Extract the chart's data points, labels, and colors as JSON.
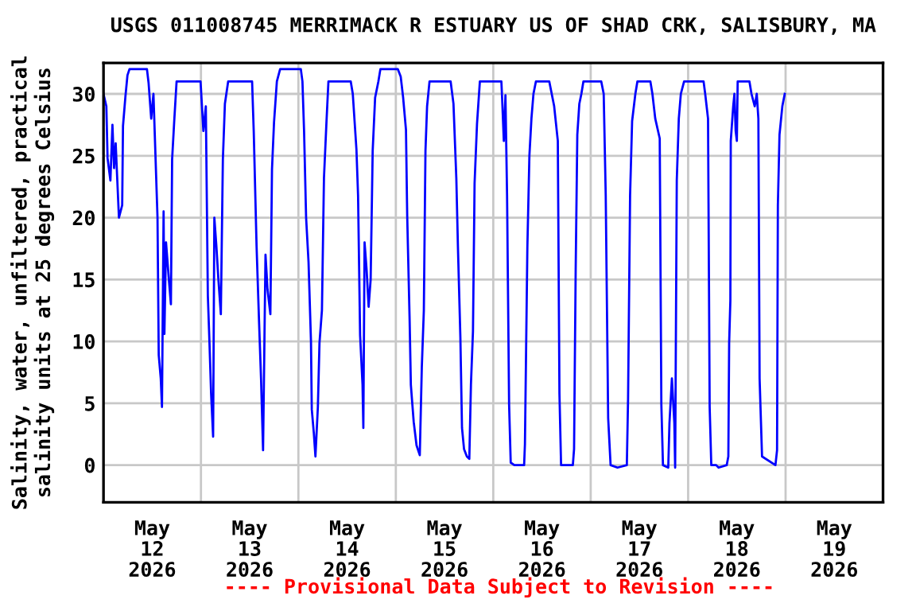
{
  "chart_data": {
    "type": "line",
    "title": "USGS 011008745 MERRIMACK R ESTUARY US OF SHAD CRK, SALISBURY, MA",
    "ylabel": "Salinity, water, unfiltered, practical\nsalinity units at 25 degrees Celsius",
    "annotations": [
      "---- Provisional Data Subject to Revision ----"
    ],
    "xlim": [
      "2026-05-12T00:00",
      "2026-05-20T00:00"
    ],
    "xticks": [
      {
        "value": "2026-05-12T12:00",
        "label": "May\n12\n2026"
      },
      {
        "value": "2026-05-13T12:00",
        "label": "May\n13\n2026"
      },
      {
        "value": "2026-05-14T12:00",
        "label": "May\n14\n2026"
      },
      {
        "value": "2026-05-15T12:00",
        "label": "May\n15\n2026"
      },
      {
        "value": "2026-05-16T12:00",
        "label": "May\n16\n2026"
      },
      {
        "value": "2026-05-17T12:00",
        "label": "May\n17\n2026"
      },
      {
        "value": "2026-05-18T12:00",
        "label": "May\n18\n2026"
      },
      {
        "value": "2026-05-19T12:00",
        "label": "May\n19\n2026"
      },
      {
        "value": "2026-05-13T00:00",
        "label": null
      },
      {
        "value": "2026-05-14T00:00",
        "label": null
      },
      {
        "value": "2026-05-15T00:00",
        "label": null
      },
      {
        "value": "2026-05-16T00:00",
        "label": null
      },
      {
        "value": "2026-05-17T00:00",
        "label": null
      },
      {
        "value": "2026-05-18T00:00",
        "label": null
      },
      {
        "value": "2026-05-19T00:00",
        "label": null
      }
    ],
    "ylim": [
      -3,
      32.5
    ],
    "yticks": [
      0,
      5,
      10,
      15,
      20,
      25,
      30
    ],
    "grid": true,
    "legend": false,
    "marker": "none",
    "line_style": "solid",
    "series": [
      {
        "color": "#0000ff",
        "x": [
          "2026-05-12T00:00",
          "2026-05-12T00:42",
          "2026-05-12T01:00",
          "2026-05-12T01:42",
          "2026-05-12T02:12",
          "2026-05-12T02:36",
          "2026-05-12T03:00",
          "2026-05-12T03:24",
          "2026-05-12T03:48",
          "2026-05-12T04:36",
          "2026-05-12T04:48",
          "2026-05-12T05:24",
          "2026-05-12T05:54",
          "2026-05-12T06:24",
          "2026-05-12T10:42",
          "2026-05-12T11:06",
          "2026-05-12T11:45",
          "2026-05-12T12:18",
          "2026-05-12T13:18",
          "2026-05-12T13:36",
          "2026-05-12T14:06",
          "2026-05-12T14:24",
          "2026-05-12T14:48",
          "2026-05-12T15:00",
          "2026-05-12T15:24",
          "2026-05-12T16:06",
          "2026-05-12T16:36",
          "2026-05-12T16:54",
          "2026-05-12T17:24",
          "2026-05-12T18:00",
          "2026-05-12T23:54",
          "2026-05-13T00:36",
          "2026-05-13T01:12",
          "2026-05-13T01:42",
          "2026-05-13T02:06",
          "2026-05-13T02:30",
          "2026-05-13T03:00",
          "2026-05-13T03:18",
          "2026-05-13T03:48",
          "2026-05-13T04:18",
          "2026-05-13T04:54",
          "2026-05-13T05:24",
          "2026-05-13T05:54",
          "2026-05-13T06:42",
          "2026-05-13T12:36",
          "2026-05-13T13:00",
          "2026-05-13T13:42",
          "2026-05-13T14:18",
          "2026-05-13T14:48",
          "2026-05-13T15:18",
          "2026-05-13T15:54",
          "2026-05-13T16:24",
          "2026-05-13T17:06",
          "2026-05-13T17:30",
          "2026-05-13T18:00",
          "2026-05-13T18:42",
          "2026-05-13T19:30",
          "2026-05-14T00:36",
          "2026-05-14T01:00",
          "2026-05-14T01:24",
          "2026-05-14T01:54",
          "2026-05-14T02:30",
          "2026-05-14T03:06",
          "2026-05-14T03:18",
          "2026-05-14T03:48",
          "2026-05-14T04:12",
          "2026-05-14T04:48",
          "2026-05-14T05:12",
          "2026-05-14T05:48",
          "2026-05-14T06:18",
          "2026-05-14T06:54",
          "2026-05-14T07:24",
          "2026-05-14T12:54",
          "2026-05-14T13:24",
          "2026-05-14T14:18",
          "2026-05-14T14:42",
          "2026-05-14T15:12",
          "2026-05-14T15:48",
          "2026-05-14T16:00",
          "2026-05-14T16:18",
          "2026-05-14T16:48",
          "2026-05-14T17:18",
          "2026-05-14T17:48",
          "2026-05-14T18:18",
          "2026-05-14T18:54",
          "2026-05-14T19:42",
          "2026-05-14T20:12",
          "2026-05-15T00:30",
          "2026-05-15T01:12",
          "2026-05-15T01:48",
          "2026-05-15T02:30",
          "2026-05-15T02:48",
          "2026-05-15T03:24",
          "2026-05-15T03:42",
          "2026-05-15T04:24",
          "2026-05-15T05:06",
          "2026-05-15T05:54",
          "2026-05-15T06:24",
          "2026-05-15T06:54",
          "2026-05-15T07:18",
          "2026-05-15T07:42",
          "2026-05-15T08:18",
          "2026-05-15T13:30",
          "2026-05-15T14:12",
          "2026-05-15T14:54",
          "2026-05-15T15:18",
          "2026-05-15T15:54",
          "2026-05-15T16:18",
          "2026-05-15T16:48",
          "2026-05-15T17:30",
          "2026-05-15T18:06",
          "2026-05-15T18:30",
          "2026-05-15T19:00",
          "2026-05-15T19:24",
          "2026-05-15T20:00",
          "2026-05-15T20:42",
          "2026-05-16T02:00",
          "2026-05-16T02:12",
          "2026-05-16T02:36",
          "2026-05-16T03:00",
          "2026-05-16T03:24",
          "2026-05-16T03:54",
          "2026-05-16T04:18",
          "2026-05-16T05:12",
          "2026-05-16T07:36",
          "2026-05-16T07:48",
          "2026-05-16T08:24",
          "2026-05-16T08:54",
          "2026-05-16T09:24",
          "2026-05-16T09:54",
          "2026-05-16T10:30",
          "2026-05-16T13:48",
          "2026-05-16T14:24",
          "2026-05-16T15:00",
          "2026-05-16T15:54",
          "2026-05-16T16:18",
          "2026-05-16T16:42",
          "2026-05-16T19:36",
          "2026-05-16T19:54",
          "2026-05-16T20:18",
          "2026-05-16T20:42",
          "2026-05-16T21:12",
          "2026-05-16T21:42",
          "2026-05-16T22:12",
          "2026-05-17T02:36",
          "2026-05-17T03:12",
          "2026-05-17T03:42",
          "2026-05-17T04:18",
          "2026-05-17T04:54",
          "2026-05-17T06:36",
          "2026-05-17T08:54",
          "2026-05-17T09:12",
          "2026-05-17T09:42",
          "2026-05-17T10:12",
          "2026-05-17T11:00",
          "2026-05-17T11:30",
          "2026-05-17T14:42",
          "2026-05-17T15:12",
          "2026-05-17T15:54",
          "2026-05-17T17:00",
          "2026-05-17T17:24",
          "2026-05-17T17:48",
          "2026-05-17T19:06",
          "2026-05-17T19:24",
          "2026-05-17T20:00",
          "2026-05-17T20:36",
          "2026-05-17T20:48",
          "2026-05-17T21:12",
          "2026-05-17T21:42",
          "2026-05-17T22:12",
          "2026-05-17T23:00",
          "2026-05-18T03:48",
          "2026-05-18T04:12",
          "2026-05-18T04:54",
          "2026-05-18T05:18",
          "2026-05-18T05:42",
          "2026-05-18T06:54",
          "2026-05-18T07:30",
          "2026-05-18T09:30",
          "2026-05-18T09:54",
          "2026-05-18T10:06",
          "2026-05-18T10:24",
          "2026-05-18T10:30",
          "2026-05-18T11:06",
          "2026-05-18T11:24",
          "2026-05-18T11:42",
          "2026-05-18T12:00",
          "2026-05-18T12:12",
          "2026-05-18T15:06",
          "2026-05-18T15:36",
          "2026-05-18T16:24",
          "2026-05-18T16:54",
          "2026-05-18T17:18",
          "2026-05-18T17:36",
          "2026-05-18T18:12",
          "2026-05-18T21:30",
          "2026-05-18T21:54",
          "2026-05-18T22:06",
          "2026-05-18T22:30",
          "2026-05-18T23:12",
          "2026-05-18T23:48"
        ],
        "values": [
          30,
          29,
          24.8,
          23,
          27.5,
          24,
          26,
          23,
          20,
          21,
          27.4,
          29.8,
          31.5,
          32,
          32,
          30.9,
          28,
          30,
          20,
          8.9,
          7,
          4.7,
          20.5,
          10.6,
          18,
          15,
          13,
          24.7,
          27.7,
          31,
          31,
          27,
          29,
          13.7,
          9.9,
          5.8,
          2.3,
          20,
          17.7,
          15,
          12.2,
          24.7,
          29.2,
          31,
          31,
          27,
          17.7,
          11.7,
          7,
          1.2,
          17,
          14.2,
          12.2,
          23.9,
          27.7,
          31,
          32,
          32,
          31,
          27,
          20,
          16.4,
          10,
          4.5,
          2.6,
          0.7,
          4.7,
          9.9,
          12.5,
          23.2,
          27.6,
          31,
          31,
          30,
          25.5,
          21.8,
          10.5,
          6.5,
          3,
          18,
          15.8,
          12.8,
          15,
          25.4,
          29.7,
          31,
          32,
          32,
          31.4,
          29.7,
          27.1,
          20.2,
          11.7,
          6.5,
          3.5,
          1.6,
          0.8,
          7.9,
          12.5,
          25.4,
          29,
          31,
          31,
          29.2,
          23.2,
          17.6,
          10.3,
          3,
          1.3,
          0.7,
          0.5,
          6.5,
          10.8,
          22.8,
          27.6,
          31,
          31,
          29.5,
          26.2,
          29.9,
          21.8,
          4.9,
          0.2,
          0,
          0,
          1.7,
          17.6,
          25,
          28,
          30,
          31,
          31,
          30,
          29,
          26.2,
          5.8,
          0,
          0,
          1.3,
          15.8,
          26.7,
          29.2,
          30,
          31,
          31,
          30,
          21.8,
          3.8,
          0,
          -0.2,
          0,
          5.3,
          21.8,
          27.8,
          30,
          31,
          31,
          30,
          28,
          26.4,
          4.9,
          0,
          -0.2,
          3.4,
          7,
          3.4,
          -0.2,
          23,
          28,
          30,
          31,
          31,
          30,
          28,
          4.7,
          0,
          0,
          -0.2,
          0,
          0.7,
          9.9,
          13.3,
          26.2,
          29,
          30,
          27,
          26.2,
          31,
          31,
          30,
          29,
          30,
          28,
          7,
          0.7,
          0,
          1.2,
          21,
          26.7,
          29,
          30
        ]
      }
    ]
  }
}
